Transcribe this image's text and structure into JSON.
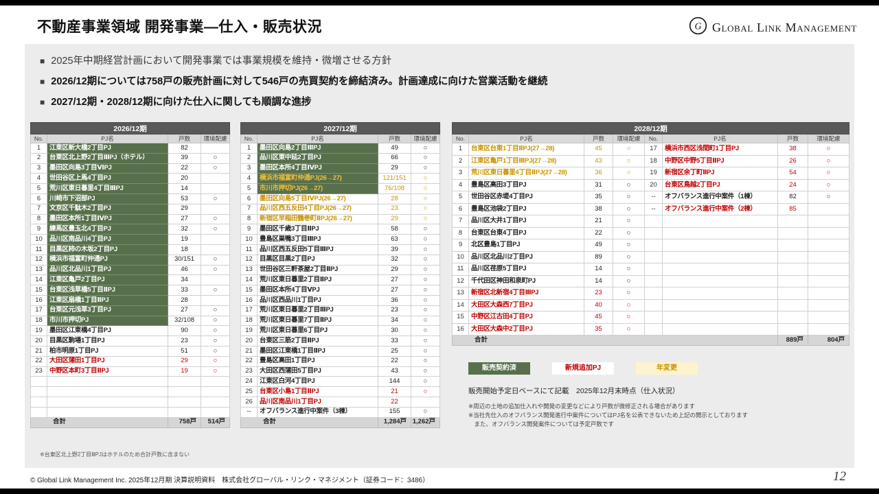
{
  "header": {
    "title": "不動産事業領域 開発事業―仕入・販売状況",
    "logo": "Global Link Management"
  },
  "bullets": [
    {
      "marker": "■",
      "text": "2025年中期経営計画において開発事業では事業規模を維持・微増させる方針"
    },
    {
      "marker": "■",
      "text": "2026/12期については758戸の販売計画に対して546戸の売買契約を締結済み。計画達成に向けた営業活動を継続"
    },
    {
      "marker": "■",
      "text": "2027/12期・2028/12期に向けた仕入に関しても順調な進捗"
    }
  ],
  "columns": {
    "no": "No.",
    "pj": "PJ名",
    "units": "戸数",
    "env": "環境配慮"
  },
  "tables": [
    {
      "year": "2026/12期",
      "empty_rows": 4,
      "groups": [
        {
          "rows": [
            {
              "no": "1",
              "pj": "江東区新大橋2丁目PJ",
              "units": "82",
              "env": "",
              "style": "g"
            },
            {
              "no": "2",
              "pj": "台東区北上野2丁目ⅢPJ（ホテル）",
              "units": "39",
              "env": "○",
              "style": "g"
            },
            {
              "no": "3",
              "pj": "墨田区向島3丁目ⅥPJ",
              "units": "22",
              "env": "○",
              "style": "g"
            },
            {
              "no": "4",
              "pj": "世田谷区上馬4丁目PJ",
              "units": "20",
              "env": "",
              "style": "g"
            },
            {
              "no": "5",
              "pj": "荒川区東日暮里4丁目ⅢPJ",
              "units": "14",
              "env": "",
              "style": "g"
            },
            {
              "no": "6",
              "pj": "川崎市下沼部PJ",
              "units": "53",
              "env": "○",
              "style": "g"
            },
            {
              "no": "7",
              "pj": "文京区千駄木2丁目PJ",
              "units": "29",
              "env": "",
              "style": "g"
            },
            {
              "no": "8",
              "pj": "墨田区本所1丁目ⅣPJ",
              "units": "27",
              "env": "○",
              "style": "g"
            },
            {
              "no": "9",
              "pj": "練馬区豊玉北4丁目PJ",
              "units": "32",
              "env": "○",
              "style": "g"
            },
            {
              "no": "10",
              "pj": "品川区南品川4丁目PJ",
              "units": "19",
              "env": "",
              "style": "g"
            },
            {
              "no": "11",
              "pj": "目黒区柿の木坂2丁目PJ",
              "units": "18",
              "env": "",
              "style": "g"
            },
            {
              "no": "12",
              "pj": "横浜市福富町仲通PJ",
              "units": "30/151",
              "env": "○",
              "style": "g"
            },
            {
              "no": "13",
              "pj": "品川区北品川1丁目PJ",
              "units": "46",
              "env": "○",
              "style": "g"
            },
            {
              "no": "14",
              "pj": "江東区亀戸2丁目PJ",
              "units": "34",
              "env": "",
              "style": "g"
            },
            {
              "no": "15",
              "pj": "台東区浅草橋5丁目ⅡPJ",
              "units": "33",
              "env": "○",
              "style": "g"
            },
            {
              "no": "16",
              "pj": "江東区扇橋1丁目ⅡPJ",
              "units": "28",
              "env": "",
              "style": "g"
            },
            {
              "no": "17",
              "pj": "台東区元浅草3丁目PJ",
              "units": "27",
              "env": "○",
              "style": "g"
            },
            {
              "no": "18",
              "pj": "市川市押切PJ",
              "units": "32/108",
              "env": "○",
              "style": "g"
            },
            {
              "no": "19",
              "pj": "墨田区江東橋4丁目PJ",
              "units": "90",
              "env": "○",
              "style": "n"
            },
            {
              "no": "20",
              "pj": "目黒区駒場1丁目PJ",
              "units": "23",
              "env": "○",
              "style": "n"
            },
            {
              "no": "21",
              "pj": "柏市明原1丁目PJ",
              "units": "51",
              "env": "○",
              "style": "n"
            },
            {
              "no": "22",
              "pj": "大田区蒲田1丁目PJ",
              "units": "29",
              "env": "○",
              "style": "r"
            },
            {
              "no": "23",
              "pj": "中野区本町3丁目ⅡPJ",
              "units": "19",
              "env": "○",
              "style": "r"
            }
          ]
        }
      ],
      "total": {
        "label": "合計",
        "units": "758戸",
        "env": "514戸"
      },
      "note": "※台東区北上野2丁目ⅢPJはホテルのため合計戸数に含まない"
    },
    {
      "year": "2027/12期",
      "empty_rows": 0,
      "groups": [
        {
          "rows": [
            {
              "no": "1",
              "pj": "墨田区向島2丁目ⅢPJ",
              "units": "49",
              "env": "○",
              "style": "g"
            },
            {
              "no": "2",
              "pj": "品川区東中延2丁目PJ",
              "units": "66",
              "env": "○",
              "style": "g"
            },
            {
              "no": "3",
              "pj": "墨田区本所4丁目ⅣPJ",
              "units": "29",
              "env": "○",
              "style": "g"
            },
            {
              "no": "4",
              "pj": "横浜市福富町仲通PJ(26→27)",
              "units": "121/151",
              "env": "○",
              "style": "go"
            },
            {
              "no": "5",
              "pj": "市川市押切PJ(26→27)",
              "units": "76/108",
              "env": "○",
              "style": "go"
            },
            {
              "no": "6",
              "pj": "墨田区向島5丁目ⅣPJ(26→27)",
              "units": "28",
              "env": "○",
              "style": "o"
            },
            {
              "no": "7",
              "pj": "品川区西五反田4丁目PJ(26→27)",
              "units": "23",
              "env": "○",
              "style": "o"
            },
            {
              "no": "8",
              "pj": "新宿区早稲田鶴巻町ⅡPJ(26→27)",
              "units": "29",
              "env": "○",
              "style": "o"
            },
            {
              "no": "9",
              "pj": "墨田区千歳3丁目ⅡPJ",
              "units": "58",
              "env": "○",
              "style": "n"
            },
            {
              "no": "10",
              "pj": "豊島区巣鴨3丁目ⅢPJ",
              "units": "63",
              "env": "○",
              "style": "n"
            },
            {
              "no": "11",
              "pj": "品川区西五反田5丁目ⅢPJ",
              "units": "39",
              "env": "○",
              "style": "n"
            },
            {
              "no": "12",
              "pj": "目黒区目黒2丁目PJ",
              "units": "32",
              "env": "○",
              "style": "n"
            },
            {
              "no": "13",
              "pj": "世田谷区三軒茶屋2丁目ⅡPJ",
              "units": "29",
              "env": "○",
              "style": "n"
            },
            {
              "no": "14",
              "pj": "荒川区東日暮里2丁目ⅡPJ",
              "units": "27",
              "env": "○",
              "style": "n"
            },
            {
              "no": "15",
              "pj": "墨田区本所4丁目ⅤPJ",
              "units": "27",
              "env": "○",
              "style": "n"
            },
            {
              "no": "16",
              "pj": "品川区西品川1丁目PJ",
              "units": "36",
              "env": "○",
              "style": "n"
            },
            {
              "no": "17",
              "pj": "荒川区東日暮里2丁目ⅢPJ",
              "units": "23",
              "env": "○",
              "style": "n"
            },
            {
              "no": "18",
              "pj": "荒川区東日暮里7丁目ⅡPJ",
              "units": "34",
              "env": "○",
              "style": "n"
            },
            {
              "no": "19",
              "pj": "荒川区東日暮里6丁目PJ",
              "units": "30",
              "env": "○",
              "style": "n"
            },
            {
              "no": "20",
              "pj": "台東区三筋2丁目ⅡPJ",
              "units": "33",
              "env": "○",
              "style": "n"
            },
            {
              "no": "21",
              "pj": "墨田区江東橋1丁目ⅡPJ",
              "units": "25",
              "env": "○",
              "style": "n"
            },
            {
              "no": "22",
              "pj": "豊島区高田1丁目PJ",
              "units": "22",
              "env": "○",
              "style": "n"
            },
            {
              "no": "23",
              "pj": "大田区西蒲田5丁目PJ",
              "units": "43",
              "env": "○",
              "style": "n"
            },
            {
              "no": "24",
              "pj": "江東区白河4丁目PJ",
              "units": "144",
              "env": "○",
              "style": "n"
            },
            {
              "no": "25",
              "pj": "台東区小島1丁目ⅡPJ",
              "units": "21",
              "env": "○",
              "style": "r"
            },
            {
              "no": "26",
              "pj": "品川区南品川1丁目PJ",
              "units": "22",
              "env": "",
              "style": "r"
            },
            {
              "no": "--",
              "pj": "オフバランス進行中案件（3棟）",
              "units": "155",
              "env": "○",
              "style": "n"
            }
          ]
        }
      ],
      "total": {
        "label": "合計",
        "units": "1,284戸",
        "env": "1,262戸"
      },
      "note": ""
    },
    {
      "year": "2028/12期",
      "empty_rows": 0,
      "groups": [
        {
          "rows": [
            {
              "no": "1",
              "pj": "台東区台東1丁目ⅡPJ(27→28)",
              "units": "45",
              "env": "○",
              "style": "o"
            },
            {
              "no": "2",
              "pj": "江東区亀戸1丁目ⅢPJ(27→28)",
              "units": "43",
              "env": "○",
              "style": "o"
            },
            {
              "no": "3",
              "pj": "荒川区東日暮里4丁目ⅡPJ(27→28)",
              "units": "36",
              "env": "○",
              "style": "o"
            },
            {
              "no": "4",
              "pj": "豊島区高田3丁目PJ",
              "units": "31",
              "env": "○",
              "style": "n"
            },
            {
              "no": "5",
              "pj": "世田谷区赤堤4丁目PJ",
              "units": "35",
              "env": "○",
              "style": "n"
            },
            {
              "no": "6",
              "pj": "豊島区池袋2丁目PJ",
              "units": "38",
              "env": "○",
              "style": "n"
            },
            {
              "no": "7",
              "pj": "品川区大井1丁目PJ",
              "units": "21",
              "env": "○",
              "style": "n"
            },
            {
              "no": "8",
              "pj": "台東区台東4丁目PJ",
              "units": "22",
              "env": "○",
              "style": "n"
            },
            {
              "no": "9",
              "pj": "北区豊島1丁目PJ",
              "units": "49",
              "env": "○",
              "style": "n"
            },
            {
              "no": "10",
              "pj": "品川区北品川2丁目PJ",
              "units": "89",
              "env": "○",
              "style": "n"
            },
            {
              "no": "11",
              "pj": "品川区荏原5丁目PJ",
              "units": "14",
              "env": "○",
              "style": "n"
            },
            {
              "no": "12",
              "pj": "千代田区神田和泉町PJ",
              "units": "14",
              "env": "○",
              "style": "n"
            },
            {
              "no": "13",
              "pj": "新宿区北新宿4丁目ⅢPJ",
              "units": "23",
              "env": "○",
              "style": "r"
            },
            {
              "no": "14",
              "pj": "大田区大森西7丁目PJ",
              "units": "40",
              "env": "○",
              "style": "r"
            },
            {
              "no": "15",
              "pj": "中野区江古田4丁目PJ",
              "units": "45",
              "env": "○",
              "style": "r"
            },
            {
              "no": "16",
              "pj": "大田区大森中2丁目PJ",
              "units": "35",
              "env": "○",
              "style": "r"
            }
          ]
        },
        {
          "rows": [
            {
              "no": "17",
              "pj": "横浜市西区浅間町1丁目PJ",
              "units": "38",
              "env": "○",
              "style": "r"
            },
            {
              "no": "18",
              "pj": "中野区中野5丁目ⅡPJ",
              "units": "26",
              "env": "○",
              "style": "r"
            },
            {
              "no": "19",
              "pj": "新宿区余丁町ⅡPJ",
              "units": "54",
              "env": "○",
              "style": "r"
            },
            {
              "no": "20",
              "pj": "台東区鳥越2丁目PJ",
              "units": "24",
              "env": "○",
              "style": "r"
            },
            {
              "no": "--",
              "pj": "オフバランス進行中案件（1棟）",
              "units": "82",
              "env": "○",
              "style": "n"
            },
            {
              "no": "--",
              "pj": "オフバランス進行中案件（2棟）",
              "units": "85",
              "env": "",
              "style": "r"
            }
          ]
        }
      ],
      "total": {
        "label": "合計",
        "units": "889戸",
        "env": "804戸"
      },
      "note": ""
    }
  ],
  "legend": [
    {
      "label": "販売契約済",
      "style": "green"
    },
    {
      "label": "新規追加PJ",
      "style": "red"
    },
    {
      "label": "年変更",
      "style": "orange"
    }
  ],
  "notes": {
    "basis": "販売開始予定日ベースにて記載　2025年12月末時点（仕入状況）",
    "fine_print": [
      "※周辺の土地の追加仕入れや開発の変更などにより戸数が微修正される場合があります",
      "※当社先仕入のオフバランス開発進行中案件についてはPJ名を公表できないため上記の開示としております",
      "　また、オフバランス開発案件については予定戸数です"
    ]
  },
  "footer": {
    "copyright": "© Global Link Management Inc. 2025年12月期 決算説明資料　株式会社グローバル・リンク・マネジメント（証券コード：3486）",
    "page": "12"
  }
}
